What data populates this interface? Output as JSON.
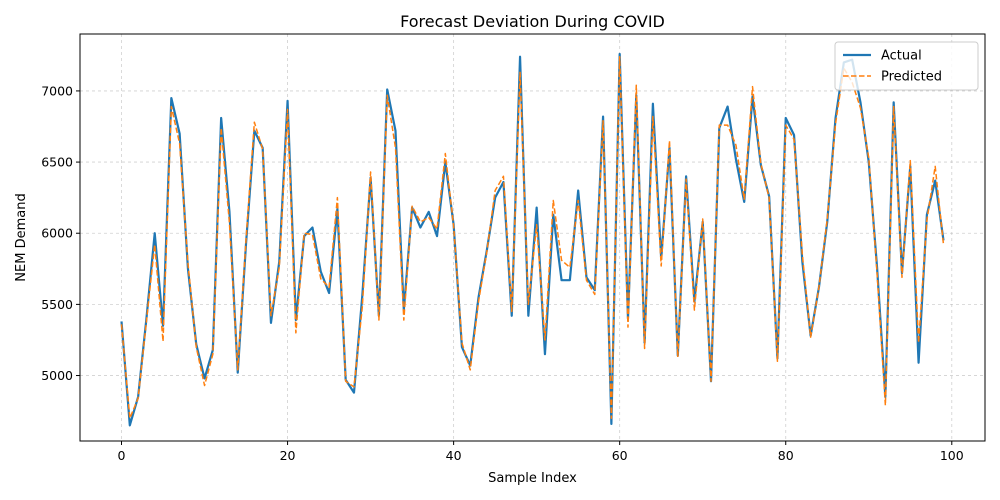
{
  "chart_data": {
    "type": "line",
    "title": "Forecast Deviation During COVID",
    "xlabel": "Sample Index",
    "ylabel": "NEM Demand",
    "xlim": [
      -5,
      104
    ],
    "ylim": [
      4540,
      7400
    ],
    "xticks": [
      0,
      20,
      40,
      60,
      80,
      100
    ],
    "yticks": [
      5000,
      5500,
      6000,
      6500,
      7000
    ],
    "grid": true,
    "legend_position": "top-right",
    "x": [
      0,
      1,
      2,
      3,
      4,
      5,
      6,
      7,
      8,
      9,
      10,
      11,
      12,
      13,
      14,
      15,
      16,
      17,
      18,
      19,
      20,
      21,
      22,
      23,
      24,
      25,
      26,
      27,
      28,
      29,
      30,
      31,
      32,
      33,
      34,
      35,
      36,
      37,
      38,
      39,
      40,
      41,
      42,
      43,
      44,
      45,
      46,
      47,
      48,
      49,
      50,
      51,
      52,
      53,
      54,
      55,
      56,
      57,
      58,
      59,
      60,
      61,
      62,
      63,
      64,
      65,
      66,
      67,
      68,
      69,
      70,
      71,
      72,
      73,
      74,
      75,
      76,
      77,
      78,
      79,
      80,
      81,
      82,
      83,
      84,
      85,
      86,
      87,
      88,
      89,
      90,
      91,
      92,
      93,
      94,
      95,
      96,
      97,
      98,
      99
    ],
    "series": [
      {
        "name": "Actual",
        "color": "#1f77b4",
        "style": "solid",
        "values": [
          5380,
          4650,
          4850,
          5400,
          6000,
          5350,
          6950,
          6700,
          5750,
          5220,
          4980,
          5180,
          6810,
          6150,
          5020,
          5930,
          6720,
          6600,
          5370,
          5800,
          6930,
          5390,
          5980,
          6040,
          5730,
          5580,
          6170,
          4970,
          4880,
          5560,
          6390,
          5420,
          7010,
          6720,
          5460,
          6180,
          6040,
          6150,
          5980,
          6500,
          6060,
          5200,
          5070,
          5550,
          5880,
          6250,
          6360,
          5420,
          7240,
          5420,
          6180,
          5150,
          6130,
          5670,
          5670,
          6300,
          5690,
          5600,
          6820,
          4660,
          7260,
          5400,
          6970,
          5230,
          6910,
          5820,
          6600,
          5140,
          6400,
          5520,
          6080,
          4960,
          6740,
          6890,
          6520,
          6220,
          6960,
          6480,
          6260,
          5120,
          6810,
          6690,
          5800,
          5280,
          5620,
          6080,
          6810,
          7200,
          7220,
          6920,
          6500,
          5760,
          4850,
          6920,
          5720,
          6470,
          5090,
          6130,
          6370,
          5950
        ]
      },
      {
        "name": "Predicted",
        "color": "#ff7f0e",
        "style": "dashed",
        "values": [
          5360,
          4700,
          4840,
          5380,
          5920,
          5240,
          6890,
          6630,
          5790,
          5200,
          4930,
          5150,
          6740,
          6070,
          5040,
          5960,
          6780,
          6590,
          5420,
          5760,
          6870,
          5300,
          6000,
          5990,
          5680,
          5620,
          6250,
          4960,
          4920,
          5480,
          6430,
          5390,
          6970,
          6600,
          5390,
          6190,
          6080,
          6110,
          6030,
          6560,
          6050,
          5230,
          5040,
          5520,
          5870,
          6300,
          6400,
          5450,
          7130,
          5500,
          6060,
          5250,
          6230,
          5810,
          5760,
          6230,
          5670,
          5570,
          6790,
          4700,
          7240,
          5340,
          7040,
          5190,
          6820,
          5770,
          6650,
          5130,
          6380,
          5460,
          6100,
          4960,
          6760,
          6760,
          6620,
          6240,
          7030,
          6490,
          6250,
          5100,
          6760,
          6660,
          5850,
          5270,
          5620,
          6100,
          6770,
          7160,
          7060,
          6880,
          6530,
          5720,
          4790,
          6890,
          5690,
          6510,
          5230,
          6090,
          6470,
          5920
        ]
      }
    ]
  }
}
